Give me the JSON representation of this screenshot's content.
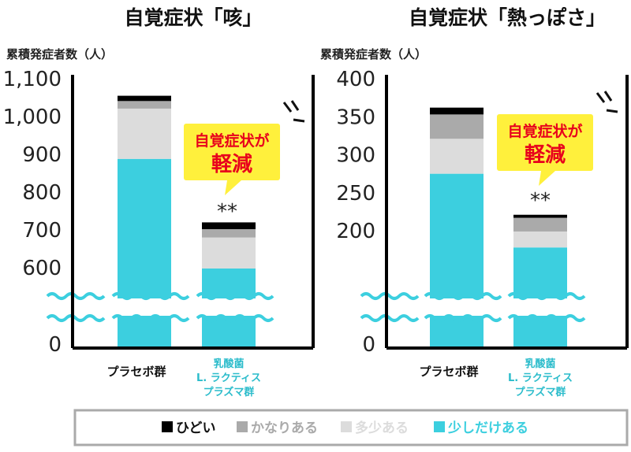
{
  "chart_data": [
    {
      "type": "bar",
      "stacked": true,
      "title": "自覚症状「咳」",
      "ylabel": "累積発症者数（人）",
      "axis_break": true,
      "yticks": [
        "0",
        "600",
        "700",
        "800",
        "900",
        "1,000",
        "1,100"
      ],
      "ylim": [
        0,
        1100
      ],
      "categories": [
        "プラセボ群",
        "乳酸菌 L. ラクティス プラズマ群"
      ],
      "category_lines": [
        [
          "プラセボ群"
        ],
        [
          "乳酸菌",
          "L. ラクティス",
          "プラズマ群"
        ]
      ],
      "series": [
        {
          "name": "少しだけある",
          "color": "#3ccfdf",
          "values": [
            888,
            598
          ]
        },
        {
          "name": "多少ある",
          "color": "#dcdcdc",
          "values": [
            133,
            82
          ]
        },
        {
          "name": "かなりある",
          "color": "#aaaaaa",
          "values": [
            20,
            22
          ]
        },
        {
          "name": "ひどい",
          "color": "#000000",
          "values": [
            14,
            18
          ]
        }
      ],
      "annotation": {
        "line1": "自覚症状が",
        "line2": "軽減"
      },
      "significance": "**"
    },
    {
      "type": "bar",
      "stacked": true,
      "title": "自覚症状「熱っぽさ」",
      "ylabel": "累積発症者数（人）",
      "axis_break": true,
      "yticks": [
        "0",
        "200",
        "250",
        "300",
        "350",
        "400"
      ],
      "ylim": [
        0,
        400
      ],
      "categories": [
        "プラセボ群",
        "乳酸菌 L. ラクティス プラズマ群"
      ],
      "category_lines": [
        [
          "プラセボ群"
        ],
        [
          "乳酸菌",
          "L. ラクティス",
          "プラズマ群"
        ]
      ],
      "series": [
        {
          "name": "少しだけある",
          "color": "#3ccfdf",
          "values": [
            275,
            178
          ]
        },
        {
          "name": "多少ある",
          "color": "#dcdcdc",
          "values": [
            46,
            21
          ]
        },
        {
          "name": "かなりある",
          "color": "#aaaaaa",
          "values": [
            32,
            18
          ]
        },
        {
          "name": "ひどい",
          "color": "#000000",
          "values": [
            9,
            4
          ]
        }
      ],
      "annotation": {
        "line1": "自覚症状が",
        "line2": "軽減"
      },
      "significance": "**"
    }
  ],
  "legend": [
    {
      "label": "ひどい",
      "color": "#000000",
      "marker": "■"
    },
    {
      "label": "かなりある",
      "color": "#aaaaaa",
      "marker": "■"
    },
    {
      "label": "多少ある",
      "color": "#dcdcdc",
      "marker": "■"
    },
    {
      "label": "少しだけある",
      "color": "#3ccfdf",
      "marker": "■"
    }
  ],
  "colors": {
    "accent_red": "#e8001c",
    "callout_yellow": "#fff03c",
    "text_teal": "#2bbccb"
  }
}
